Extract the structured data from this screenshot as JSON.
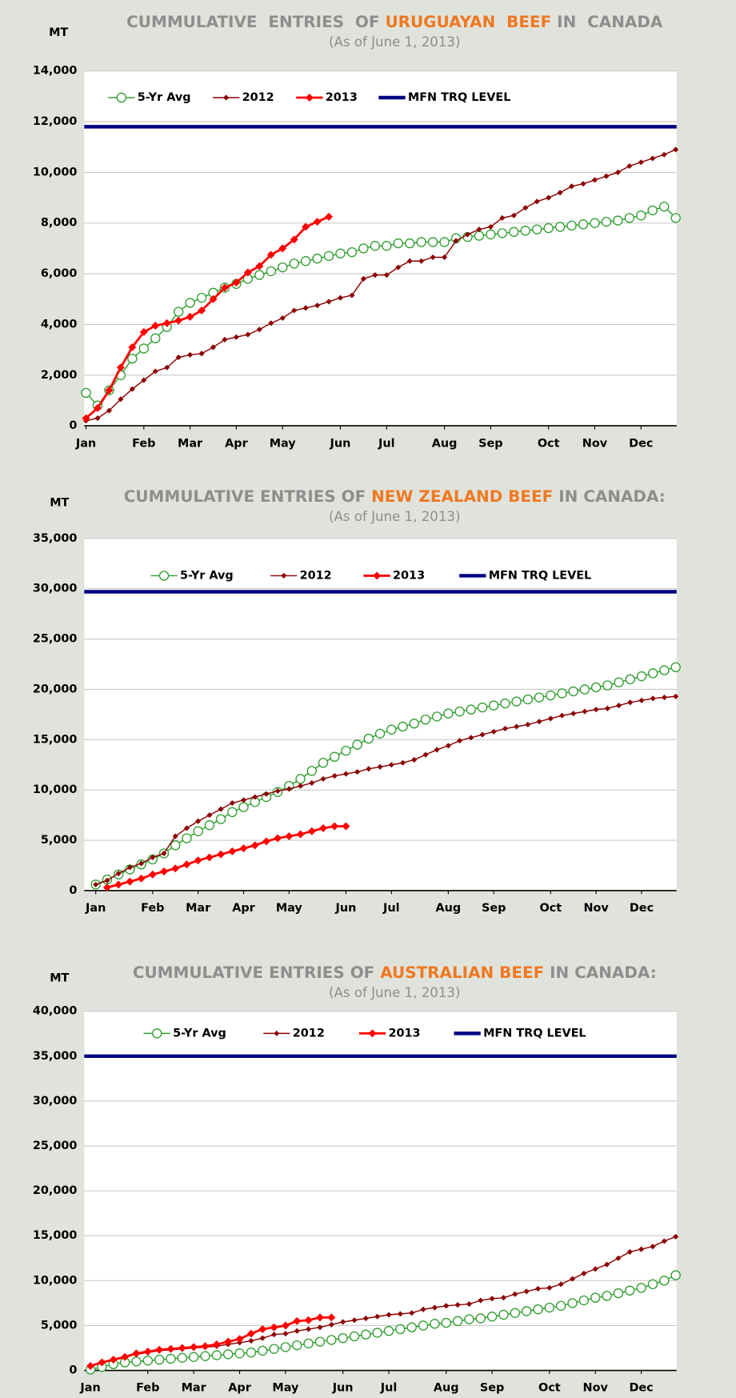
{
  "chart_data": [
    {
      "type": "line",
      "title": [
        "CUMMULATIVE  ENTRIES  OF ",
        "URUGUAYAN  BEEF",
        " IN  CANADA"
      ],
      "subtitle": "(As of June 1, 2013)",
      "y_label": "MT",
      "categories": [
        "Jan",
        null,
        null,
        null,
        null,
        "Feb",
        null,
        null,
        null,
        "Mar",
        null,
        null,
        null,
        "Apr",
        null,
        null,
        null,
        "May",
        null,
        null,
        null,
        null,
        "Jun",
        null,
        null,
        null,
        "Jul",
        null,
        null,
        null,
        null,
        "Aug",
        null,
        null,
        null,
        "Sep",
        null,
        null,
        null,
        null,
        "Oct",
        null,
        null,
        null,
        "Nov",
        null,
        null,
        null,
        "Dec",
        null,
        null,
        null
      ],
      "series": [
        {
          "name": "5-Yr Avg",
          "color": "#2e9e2e",
          "marker": "circle",
          "values": [
            1300,
            800,
            1400,
            2000,
            2650,
            3050,
            3450,
            3900,
            4500,
            4850,
            5050,
            5250,
            5450,
            5600,
            5800,
            5950,
            6100,
            6250,
            6400,
            6500,
            6600,
            6700,
            6800,
            6850,
            7000,
            7100,
            7100,
            7200,
            7200,
            7250,
            7250,
            7250,
            7400,
            7450,
            7500,
            7550,
            7600,
            7650,
            7700,
            7750,
            7800,
            7850,
            7900,
            7950,
            8000,
            8050,
            8100,
            8200,
            8300,
            8500,
            8650,
            8200
          ]
        },
        {
          "name": "2012",
          "color": "#8b0000",
          "marker": "diamond",
          "values": [
            200,
            300,
            600,
            1050,
            1450,
            1800,
            2150,
            2300,
            2700,
            2800,
            2850,
            3100,
            3400,
            3500,
            3600,
            3800,
            4050,
            4250,
            4550,
            4650,
            4750,
            4900,
            5050,
            5150,
            5800,
            5950,
            5950,
            6250,
            6500,
            6500,
            6650,
            6650,
            7300,
            7550,
            7750,
            7850,
            8200,
            8300,
            8600,
            8850,
            9000,
            9200,
            9450,
            9550,
            9700,
            9850,
            10000,
            10250,
            10400,
            10550,
            10700,
            10900
          ]
        },
        {
          "name": "2013",
          "color": "#ff0000",
          "marker": "diamond-large",
          "values": [
            300,
            700,
            1400,
            2300,
            3100,
            3700,
            3950,
            4050,
            4150,
            4300,
            4550,
            5000,
            5450,
            5650,
            6050,
            6300,
            6750,
            7000,
            7350,
            7850,
            8050,
            8250,
            null,
            null,
            null,
            null,
            null,
            null,
            null,
            null,
            null,
            null,
            null,
            null,
            null,
            null,
            null,
            null,
            null,
            null,
            null,
            null,
            null,
            null,
            null,
            null,
            null,
            null,
            null,
            null,
            null,
            null
          ]
        }
      ],
      "reference_lines": [
        {
          "name": "MFN TRQ LEVEL",
          "color": "#000080",
          "value": 11800
        }
      ],
      "ylim": [
        0,
        14000
      ],
      "yticks": [
        {
          "value": 0,
          "label": "0"
        },
        {
          "value": 2000,
          "label": "2,000"
        },
        {
          "value": 4000,
          "label": "4,000"
        },
        {
          "value": 6000,
          "label": "6,000"
        },
        {
          "value": 8000,
          "label": "8,000"
        },
        {
          "value": 10000,
          "label": "10,000"
        },
        {
          "value": 12000,
          "label": "12,000"
        },
        {
          "value": 14000,
          "label": "14,000"
        }
      ],
      "grid": true,
      "legend": "top"
    },
    {
      "type": "line",
      "title": [
        "CUMMULATIVE ENTRIES OF ",
        "NEW ZEALAND BEEF",
        " IN CANADA:"
      ],
      "subtitle": "(As of June 1, 2013)",
      "y_label": "MT",
      "categories": [
        "Jan",
        null,
        null,
        null,
        null,
        "Feb",
        null,
        null,
        null,
        "Mar",
        null,
        null,
        null,
        "Apr",
        null,
        null,
        null,
        "May",
        null,
        null,
        null,
        null,
        "Jun",
        null,
        null,
        null,
        "Jul",
        null,
        null,
        null,
        null,
        "Aug",
        null,
        null,
        null,
        "Sep",
        null,
        null,
        null,
        null,
        "Oct",
        null,
        null,
        null,
        "Nov",
        null,
        null,
        null,
        "Dec",
        null,
        null,
        null
      ],
      "series": [
        {
          "name": "5-Yr Avg",
          "color": "#2e9e2e",
          "marker": "circle",
          "values": [
            600,
            1100,
            1600,
            2100,
            2600,
            3100,
            3700,
            4500,
            5200,
            5900,
            6500,
            7100,
            7800,
            8300,
            8800,
            9300,
            9800,
            10400,
            11100,
            11900,
            12700,
            13300,
            13900,
            14500,
            15100,
            15600,
            16000,
            16300,
            16600,
            17000,
            17300,
            17600,
            17800,
            18000,
            18200,
            18400,
            18600,
            18800,
            19000,
            19200,
            19400,
            19600,
            19800,
            20000,
            20200,
            20400,
            20700,
            21000,
            21300,
            21600,
            21900,
            22200
          ]
        },
        {
          "name": "2012",
          "color": "#8b0000",
          "marker": "diamond",
          "values": [
            600,
            1000,
            1700,
            2300,
            2700,
            3300,
            3700,
            5400,
            6200,
            6900,
            7500,
            8100,
            8700,
            9000,
            9300,
            9600,
            9900,
            10100,
            10400,
            10700,
            11100,
            11400,
            11600,
            11800,
            12100,
            12300,
            12500,
            12700,
            13000,
            13500,
            14000,
            14400,
            14900,
            15200,
            15500,
            15800,
            16100,
            16300,
            16500,
            16800,
            17100,
            17400,
            17600,
            17800,
            18000,
            18100,
            18400,
            18700,
            18900,
            19100,
            19200,
            19300
          ]
        },
        {
          "name": "2013",
          "color": "#ff0000",
          "marker": "diamond-large",
          "values": [
            null,
            300,
            600,
            900,
            1200,
            1600,
            1900,
            2200,
            2600,
            3000,
            3300,
            3600,
            3900,
            4200,
            4500,
            4900,
            5200,
            5400,
            5600,
            5900,
            6200,
            6400,
            6400,
            null,
            null,
            null,
            null,
            null,
            null,
            null,
            null,
            null,
            null,
            null,
            null,
            null,
            null,
            null,
            null,
            null,
            null,
            null,
            null,
            null,
            null,
            null,
            null,
            null,
            null,
            null,
            null,
            null
          ]
        }
      ],
      "reference_lines": [
        {
          "name": "MFN TRQ LEVEL",
          "color": "#000080",
          "value": 29700
        }
      ],
      "ylim": [
        0,
        35000
      ],
      "yticks": [
        {
          "value": 0,
          "label": "0"
        },
        {
          "value": 5000,
          "label": "5,000"
        },
        {
          "value": 10000,
          "label": "10,000"
        },
        {
          "value": 15000,
          "label": "15,000"
        },
        {
          "value": 20000,
          "label": "20,000"
        },
        {
          "value": 25000,
          "label": "25,000"
        },
        {
          "value": 30000,
          "label": "30,000"
        },
        {
          "value": 35000,
          "label": "35,000"
        }
      ],
      "grid": true,
      "legend": "top"
    },
    {
      "type": "line",
      "title": [
        "CUMMULATIVE ENTRIES OF ",
        "AUSTRALIAN BEEF",
        " IN CANADA:"
      ],
      "subtitle": "(As of June 1, 2013)",
      "y_label": "MT",
      "categories": [
        "Jan",
        null,
        null,
        null,
        null,
        "Feb",
        null,
        null,
        null,
        "Mar",
        null,
        null,
        null,
        "Apr",
        null,
        null,
        null,
        "May",
        null,
        null,
        null,
        null,
        "Jun",
        null,
        null,
        null,
        "Jul",
        null,
        null,
        null,
        null,
        "Aug",
        null,
        null,
        null,
        "Sep",
        null,
        null,
        null,
        null,
        "Oct",
        null,
        null,
        null,
        "Nov",
        null,
        null,
        null,
        "Dec",
        null,
        null,
        null
      ],
      "series": [
        {
          "name": "5-Yr Avg",
          "color": "#2e9e2e",
          "marker": "circle",
          "values": [
            100,
            400,
            700,
            900,
            1000,
            1100,
            1200,
            1300,
            1400,
            1500,
            1600,
            1700,
            1800,
            1900,
            2000,
            2200,
            2400,
            2600,
            2800,
            3000,
            3200,
            3400,
            3600,
            3800,
            4000,
            4200,
            4400,
            4600,
            4800,
            5000,
            5200,
            5300,
            5500,
            5700,
            5800,
            6000,
            6200,
            6400,
            6600,
            6800,
            7000,
            7200,
            7500,
            7800,
            8100,
            8300,
            8600,
            8900,
            9200,
            9600,
            10000,
            10600
          ]
        },
        {
          "name": "2012",
          "color": "#8b0000",
          "marker": "diamond",
          "values": [
            500,
            900,
            1200,
            1500,
            1800,
            2000,
            2200,
            2300,
            2400,
            2500,
            2600,
            2700,
            2900,
            3100,
            3300,
            3600,
            4000,
            4100,
            4400,
            4600,
            4800,
            5100,
            5400,
            5600,
            5800,
            6000,
            6200,
            6300,
            6400,
            6800,
            7000,
            7200,
            7300,
            7400,
            7800,
            8000,
            8100,
            8500,
            8800,
            9100,
            9200,
            9600,
            10200,
            10800,
            11300,
            11800,
            12500,
            13200,
            13500,
            13800,
            14400,
            14900
          ]
        },
        {
          "name": "2013",
          "color": "#ff0000",
          "marker": "diamond-large",
          "values": [
            500,
            900,
            1200,
            1500,
            1900,
            2100,
            2300,
            2400,
            2500,
            2600,
            2700,
            2900,
            3200,
            3500,
            4100,
            4600,
            4800,
            5000,
            5500,
            5600,
            5900,
            5900,
            null,
            null,
            null,
            null,
            null,
            null,
            null,
            null,
            null,
            null,
            null,
            null,
            null,
            null,
            null,
            null,
            null,
            null,
            null,
            null,
            null,
            null,
            null,
            null,
            null,
            null,
            null,
            null,
            null,
            null
          ]
        }
      ],
      "reference_lines": [
        {
          "name": "MFN TRQ LEVEL",
          "color": "#000080",
          "value": 35000
        }
      ],
      "ylim": [
        0,
        40000
      ],
      "yticks": [
        {
          "value": 0,
          "label": "0"
        },
        {
          "value": 5000,
          "label": "5,000"
        },
        {
          "value": 10000,
          "label": "10,000"
        },
        {
          "value": 15000,
          "label": "15,000"
        },
        {
          "value": 20000,
          "label": "20,000"
        },
        {
          "value": 25000,
          "label": "25,000"
        },
        {
          "value": 30000,
          "label": "30,000"
        },
        {
          "value": 35000,
          "label": "35,000"
        },
        {
          "value": 40000,
          "label": "40,000"
        }
      ],
      "grid": true,
      "legend": "top"
    }
  ]
}
